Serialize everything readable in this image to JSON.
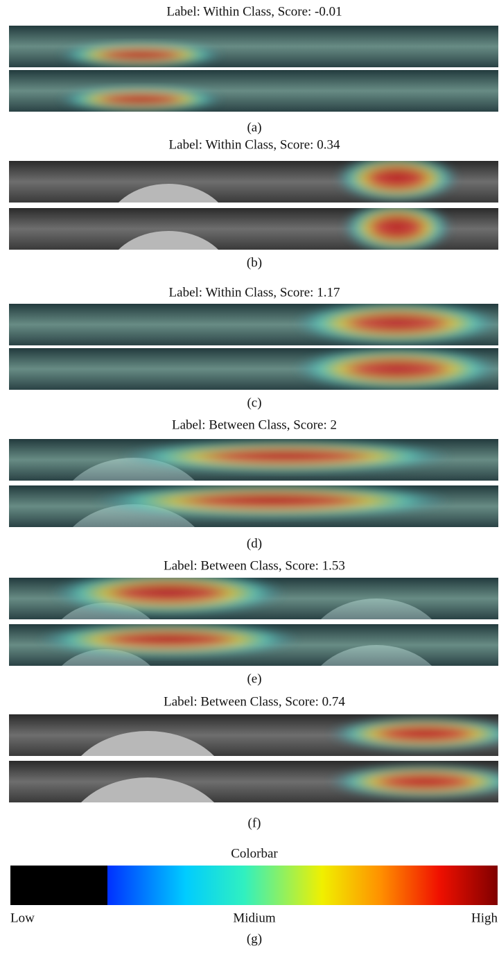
{
  "panels": [
    {
      "title": "Label: Within Class, Score: -0.01",
      "caption": "(a)"
    },
    {
      "title": "Label: Within Class, Score: 0.34",
      "caption": "(b)"
    },
    {
      "title": "Label: Within Class, Score: 1.17",
      "caption": "(c)"
    },
    {
      "title": "Label: Between Class, Score: 2",
      "caption": "(d)"
    },
    {
      "title": "Label: Between Class, Score: 1.53",
      "caption": "(e)"
    },
    {
      "title": "Label: Between Class, Score: 0.74",
      "caption": "(f)"
    }
  ],
  "colorbar": {
    "title": "Colorbar",
    "labels": [
      "Low",
      "Midium",
      "High"
    ],
    "caption": "(g)"
  }
}
